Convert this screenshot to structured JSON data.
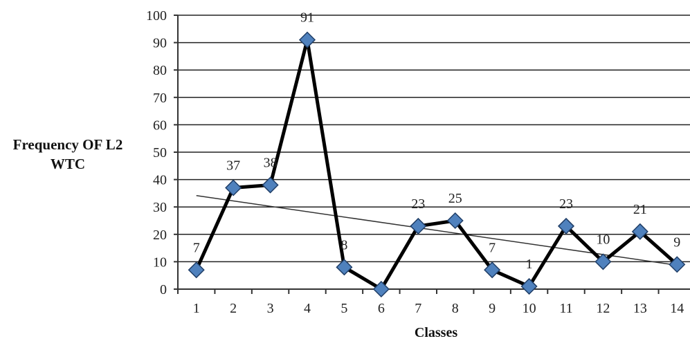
{
  "chart_data": {
    "type": "line",
    "ylabel_line1": "Frequency OF L2",
    "ylabel_line2": "WTC",
    "xlabel": "Classes",
    "categories": [
      "1",
      "2",
      "3",
      "4",
      "5",
      "6",
      "7",
      "8",
      "9",
      "10",
      "11",
      "12",
      "13",
      "14"
    ],
    "series": [
      {
        "values": [
          7,
          37,
          38,
          91,
          8,
          0,
          23,
          25,
          7,
          1,
          23,
          10,
          21,
          9
        ],
        "labels": [
          "7",
          "37",
          "38",
          "91",
          "8",
          "",
          "23",
          "25",
          "7",
          "1",
          "23",
          "10",
          "21",
          "9"
        ],
        "color": "#000000",
        "marker_color": "#4f81bd",
        "marker": "diamond"
      }
    ],
    "trendline": {
      "type": "linear",
      "color": "#333333"
    },
    "ylim": [
      0,
      100
    ],
    "yticks": [
      0,
      10,
      20,
      30,
      40,
      50,
      60,
      70,
      80,
      90,
      100
    ],
    "grid": true
  }
}
